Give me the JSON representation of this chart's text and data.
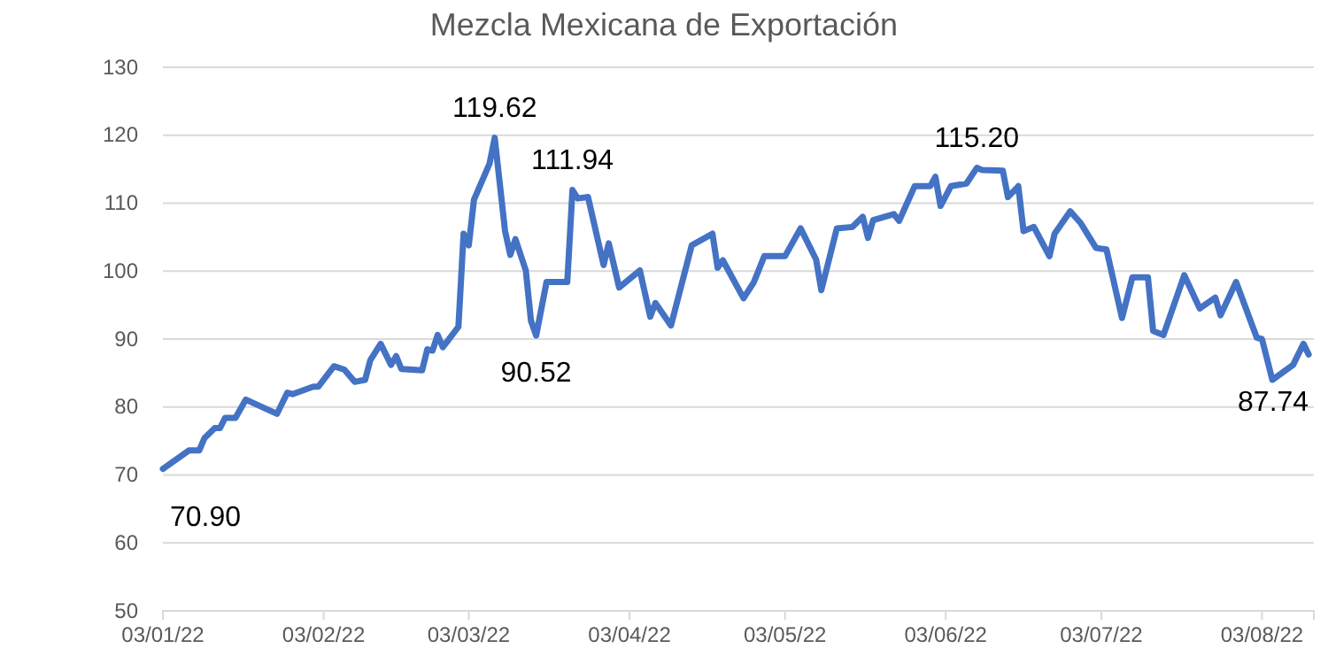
{
  "chart_data": {
    "type": "line",
    "title": "Mezcla Mexicana de Exportación",
    "x": [
      "2022-01-03",
      "2022-01-08",
      "2022-01-10",
      "2022-01-11",
      "2022-01-13",
      "2022-01-14",
      "2022-01-15",
      "2022-01-17",
      "2022-01-19",
      "2022-01-25",
      "2022-01-27",
      "2022-01-28",
      "2022-02-01",
      "2022-02-02",
      "2022-02-05",
      "2022-02-07",
      "2022-02-09",
      "2022-02-11",
      "2022-02-12",
      "2022-02-14",
      "2022-02-16",
      "2022-02-17",
      "2022-02-18",
      "2022-02-22",
      "2022-02-23",
      "2022-02-24",
      "2022-02-25",
      "2022-02-26",
      "2022-03-01",
      "2022-03-02",
      "2022-03-03",
      "2022-03-04",
      "2022-03-07",
      "2022-03-08",
      "2022-03-10",
      "2022-03-11",
      "2022-03-12",
      "2022-03-14",
      "2022-03-15",
      "2022-03-16",
      "2022-03-18",
      "2022-03-22",
      "2022-03-23",
      "2022-03-24",
      "2022-03-26",
      "2022-03-29",
      "2022-03-30",
      "2022-04-01",
      "2022-04-05",
      "2022-04-07",
      "2022-04-08",
      "2022-04-11",
      "2022-04-15",
      "2022-04-19",
      "2022-04-20",
      "2022-04-21",
      "2022-04-25",
      "2022-04-27",
      "2022-04-29",
      "2022-05-03",
      "2022-05-06",
      "2022-05-09",
      "2022-05-10",
      "2022-05-13",
      "2022-05-16",
      "2022-05-18",
      "2022-05-19",
      "2022-05-20",
      "2022-05-24",
      "2022-05-25",
      "2022-05-28",
      "2022-05-31",
      "2022-06-01",
      "2022-06-02",
      "2022-06-04",
      "2022-06-07",
      "2022-06-09",
      "2022-06-10",
      "2022-06-14",
      "2022-06-15",
      "2022-06-17",
      "2022-06-18",
      "2022-06-20",
      "2022-06-23",
      "2022-06-24",
      "2022-06-27",
      "2022-06-29",
      "2022-07-02",
      "2022-07-04",
      "2022-07-07",
      "2022-07-09",
      "2022-07-12",
      "2022-07-13",
      "2022-07-15",
      "2022-07-19",
      "2022-07-22",
      "2022-07-25",
      "2022-07-26",
      "2022-07-29",
      "2022-08-02",
      "2022-08-03",
      "2022-08-05",
      "2022-08-09",
      "2022-08-11",
      "2022-08-12"
    ],
    "series": [
      {
        "color": "#4472c4",
        "values": [
          70.9,
          73.6,
          73.6,
          75.4,
          76.9,
          76.9,
          78.4,
          78.4,
          81.1,
          79.0,
          82.1,
          81.9,
          83.0,
          83.0,
          86.0,
          85.5,
          83.7,
          84.0,
          86.9,
          89.3,
          86.2,
          87.5,
          85.6,
          85.4,
          88.5,
          88.3,
          90.6,
          88.8,
          91.8,
          105.5,
          103.8,
          110.5,
          115.8,
          119.62,
          105.9,
          102.4,
          104.7,
          100.1,
          92.7,
          90.52,
          98.4,
          98.4,
          111.94,
          110.7,
          110.9,
          100.9,
          104.1,
          97.6,
          100.1,
          93.3,
          95.3,
          92.0,
          103.8,
          105.5,
          100.5,
          101.6,
          96.0,
          98.4,
          102.2,
          102.2,
          106.3,
          101.7,
          97.2,
          106.3,
          106.5,
          108.0,
          104.9,
          107.5,
          108.4,
          107.4,
          112.5,
          112.5,
          113.9,
          109.6,
          112.5,
          112.9,
          115.2,
          114.9,
          114.8,
          110.9,
          112.5,
          105.9,
          106.5,
          102.2,
          105.5,
          108.8,
          107.1,
          103.4,
          103.2,
          93.1,
          99.1,
          99.1,
          91.2,
          90.6,
          99.4,
          94.5,
          96.1,
          93.5,
          98.4,
          90.2,
          90.0,
          84.0,
          86.2,
          89.3,
          87.74
        ]
      }
    ],
    "xlim": [
      "2022-01-03",
      "2022-08-13"
    ],
    "xticks": [
      {
        "value": "2022-01-03",
        "label": "03/01/22"
      },
      {
        "value": "2022-02-03",
        "label": "03/02/22"
      },
      {
        "value": "2022-03-03",
        "label": "03/03/22"
      },
      {
        "value": "2022-04-03",
        "label": "03/04/22"
      },
      {
        "value": "2022-05-03",
        "label": "03/05/22"
      },
      {
        "value": "2022-06-03",
        "label": "03/06/22"
      },
      {
        "value": "2022-07-03",
        "label": "03/07/22"
      },
      {
        "value": "2022-08-03",
        "label": "03/08/22"
      }
    ],
    "ylim": [
      50,
      130
    ],
    "yticks": [
      50,
      60,
      70,
      80,
      90,
      100,
      110,
      120,
      130
    ],
    "grid": "y",
    "marker": "none",
    "line_style": "solid",
    "annotations": [
      {
        "text": "70.90",
        "x": "2022-01-03",
        "y": 70.9
      },
      {
        "text": "119.62",
        "x": "2022-03-08",
        "y": 119.62
      },
      {
        "text": "111.94",
        "x": "2022-03-23",
        "y": 111.94
      },
      {
        "text": "90.52",
        "x": "2022-03-16",
        "y": 90.52
      },
      {
        "text": "115.20",
        "x": "2022-06-09",
        "y": 115.2
      },
      {
        "text": "87.74",
        "x": "2022-08-12",
        "y": 87.74
      }
    ]
  }
}
